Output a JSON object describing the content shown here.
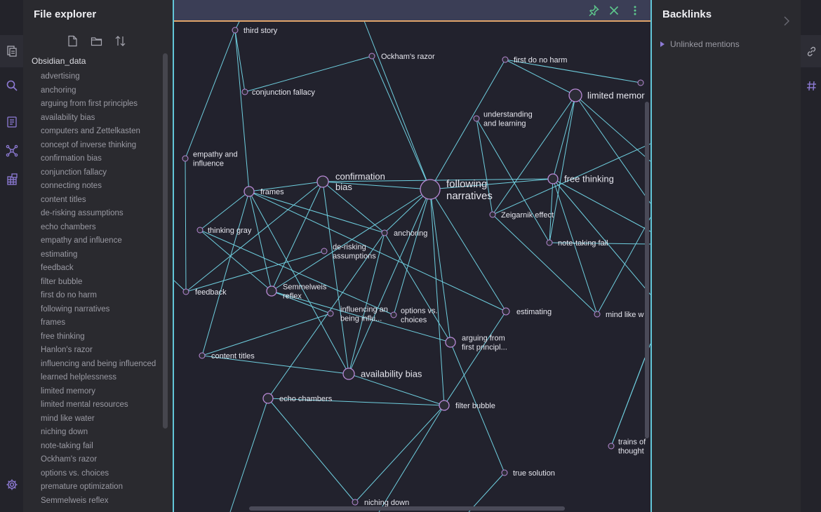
{
  "explorer": {
    "title": "File explorer",
    "vault": "Obsidian_data",
    "files": [
      "advertising",
      "anchoring",
      "arguing from first principles",
      "availability bias",
      "computers and Zettelkasten",
      "concept of inverse thinking",
      "confirmation bias",
      "conjunction fallacy",
      "connecting notes",
      "content titles",
      "de-risking assumptions",
      "echo chambers",
      "empathy and influence",
      "estimating",
      "feedback",
      "filter bubble",
      "first do no harm",
      "following narratives",
      "frames",
      "free thinking",
      "Hanlon's razor",
      "influencing and being influenced",
      "learned helplessness",
      "limited memory",
      "limited mental resources",
      "mind like water",
      "niching down",
      "note-taking fail",
      "Ockham's razor",
      "options vs. choices",
      "premature optimization",
      "Semmelweis reflex"
    ],
    "actions": [
      "new-note-icon",
      "new-folder-icon",
      "sort-icon"
    ]
  },
  "backlinks": {
    "title": "Backlinks",
    "unlinked": "Unlinked mentions"
  },
  "graph": {
    "header_actions": [
      "pin-icon",
      "close-icon",
      "more-options-icon"
    ],
    "colors": {
      "edge": "#6fcfdf",
      "node_fill": "#2c2c36",
      "node_stroke": "#b98ad6",
      "label": "#e6e6ee",
      "header_accent": "#e0a36a",
      "pane_border": "#62c6d8"
    },
    "nodes": [
      {
        "id": "third",
        "lines": [
          "third story"
        ]
      },
      {
        "id": "ockham",
        "lines": [
          "Ockham's razor"
        ]
      },
      {
        "id": "firstdo",
        "lines": [
          "first do no harm"
        ]
      },
      {
        "id": "limitedmem",
        "lines": [
          "limited memor"
        ]
      },
      {
        "id": "conjunction",
        "lines": [
          "conjunction fallacy"
        ]
      },
      {
        "id": "understanding",
        "lines": [
          "understanding",
          "and learning"
        ]
      },
      {
        "id": "empathy",
        "lines": [
          "empathy and",
          "influence"
        ]
      },
      {
        "id": "confirmation",
        "lines": [
          "confirmation",
          "bias"
        ]
      },
      {
        "id": "following",
        "lines": [
          "following",
          "narratives"
        ]
      },
      {
        "id": "freethinking",
        "lines": [
          "free thinking"
        ]
      },
      {
        "id": "frames",
        "lines": [
          "frames"
        ]
      },
      {
        "id": "zeigarnik",
        "lines": [
          "Zeigarnik effect"
        ]
      },
      {
        "id": "thinkinggray",
        "lines": [
          "thinking gray"
        ]
      },
      {
        "id": "anchoring",
        "lines": [
          "anchoring"
        ]
      },
      {
        "id": "notetaking",
        "lines": [
          "note-taking fail"
        ]
      },
      {
        "id": "derisking",
        "lines": [
          "de-risking",
          "assumptions"
        ]
      },
      {
        "id": "feedback",
        "lines": [
          "feedback"
        ]
      },
      {
        "id": "semmelweis",
        "lines": [
          "Semmelweis",
          "reflex"
        ]
      },
      {
        "id": "influencing",
        "lines": [
          "influencing an",
          "being influ..."
        ]
      },
      {
        "id": "options",
        "lines": [
          "options vs.",
          "choices"
        ]
      },
      {
        "id": "estimating",
        "lines": [
          "estimating"
        ]
      },
      {
        "id": "mindlike",
        "lines": [
          "mind like w"
        ]
      },
      {
        "id": "arguing",
        "lines": [
          "arguing from",
          "first principl..."
        ]
      },
      {
        "id": "contenttitles",
        "lines": [
          "content titles"
        ]
      },
      {
        "id": "availability",
        "lines": [
          "availability bias"
        ]
      },
      {
        "id": "echo",
        "lines": [
          "echo chambers"
        ]
      },
      {
        "id": "filterbubble",
        "lines": [
          "filter bubble"
        ]
      },
      {
        "id": "trains",
        "lines": [
          "trains of",
          "thought"
        ]
      },
      {
        "id": "truesolution",
        "lines": [
          "true solution"
        ]
      },
      {
        "id": "niching",
        "lines": [
          "niching down"
        ]
      },
      {
        "id": "topright",
        "lines": []
      },
      {
        "id": "rightedge",
        "lines": []
      }
    ],
    "edges": [
      [
        "third",
        "empathy"
      ],
      [
        "third",
        "frames"
      ],
      [
        "third",
        "conjunction"
      ],
      [
        "ockham",
        "conjunction"
      ],
      [
        "ockham",
        "following"
      ],
      [
        "firstdo",
        "following"
      ],
      [
        "following",
        "confirmation"
      ],
      [
        "following",
        "freethinking"
      ],
      [
        "following",
        "anchoring"
      ],
      [
        "following",
        "semmelweis"
      ],
      [
        "following",
        "availability"
      ],
      [
        "following",
        "filterbubble"
      ],
      [
        "following",
        "arguing"
      ],
      [
        "following",
        "options"
      ],
      [
        "following",
        "estimating"
      ],
      [
        "confirmation",
        "frames"
      ],
      [
        "confirmation",
        "feedback"
      ],
      [
        "confirmation",
        "semmelweis"
      ],
      [
        "confirmation",
        "availability"
      ],
      [
        "confirmation",
        "anchoring"
      ],
      [
        "confirmation",
        "freethinking"
      ],
      [
        "frames",
        "thinkinggray"
      ],
      [
        "frames",
        "semmelweis"
      ],
      [
        "frames",
        "availability"
      ],
      [
        "frames",
        "anchoring"
      ],
      [
        "frames",
        "contenttitles"
      ],
      [
        "frames",
        "estimating"
      ],
      [
        "thinkinggray",
        "semmelweis"
      ],
      [
        "thinkinggray",
        "options"
      ],
      [
        "feedback",
        "derisking"
      ],
      [
        "anchoring",
        "availability"
      ],
      [
        "anchoring",
        "arguing"
      ],
      [
        "anchoring",
        "echo"
      ],
      [
        "semmelweis",
        "arguing"
      ],
      [
        "semmelweis",
        "influencing"
      ],
      [
        "influencing",
        "contenttitles"
      ],
      [
        "estimating",
        "filterbubble"
      ],
      [
        "contenttitles",
        "availability"
      ],
      [
        "echo",
        "filterbubble"
      ],
      [
        "echo",
        "niching"
      ],
      [
        "filterbubble",
        "niching"
      ],
      [
        "availability",
        "filterbubble"
      ],
      [
        "arguing",
        "truesolution"
      ],
      [
        "understanding",
        "zeigarnik"
      ],
      [
        "understanding",
        "notetaking"
      ],
      [
        "zeigarnik",
        "mindlike"
      ],
      [
        "limitedmem",
        "notetaking"
      ],
      [
        "limitedmem",
        "freethinking"
      ],
      [
        "limitedmem",
        "zeigarnik"
      ],
      [
        "limitedmem",
        "firstdo"
      ],
      [
        "freethinking",
        "notetaking"
      ],
      [
        "freethinking",
        "mindlike"
      ],
      [
        "trains",
        "rightedge"
      ],
      [
        "topright",
        "firstdo"
      ],
      [
        "empathy",
        "feedback"
      ]
    ]
  }
}
